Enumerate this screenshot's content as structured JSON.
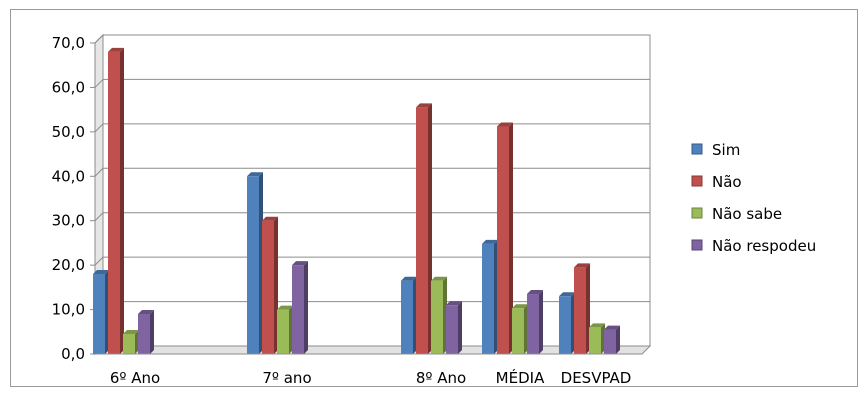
{
  "chart_data": {
    "type": "bar",
    "title": "",
    "xlabel": "",
    "ylabel": "",
    "ylim": [
      0,
      70
    ],
    "ytick_labels": [
      "0,0",
      "10,0",
      "20,0",
      "30,0",
      "40,0",
      "50,0",
      "60,0",
      "70,0"
    ],
    "yticks": [
      0,
      10,
      20,
      30,
      40,
      50,
      60,
      70
    ],
    "categories": [
      "6º Ano",
      "",
      "7º ano",
      "",
      "8º Ano",
      "MÉDIA",
      "DESVPAD"
    ],
    "series": [
      {
        "name": "Sim",
        "color": "#4F81BD",
        "values": [
          18,
          null,
          40,
          null,
          16.5,
          24.8,
          13
        ]
      },
      {
        "name": "Não",
        "color": "#C0504D",
        "values": [
          68,
          null,
          30,
          null,
          55.5,
          51.2,
          19.5
        ]
      },
      {
        "name": "Não sabe",
        "color": "#9BBB59",
        "values": [
          4.5,
          null,
          10,
          null,
          16.5,
          10.3,
          6
        ]
      },
      {
        "name": "Não respodeu",
        "color": "#8064A2",
        "values": [
          9,
          null,
          20,
          null,
          11,
          13.5,
          5.5
        ]
      }
    ],
    "grid": true,
    "legend_position": "right",
    "style": "3d-clustered-column"
  }
}
